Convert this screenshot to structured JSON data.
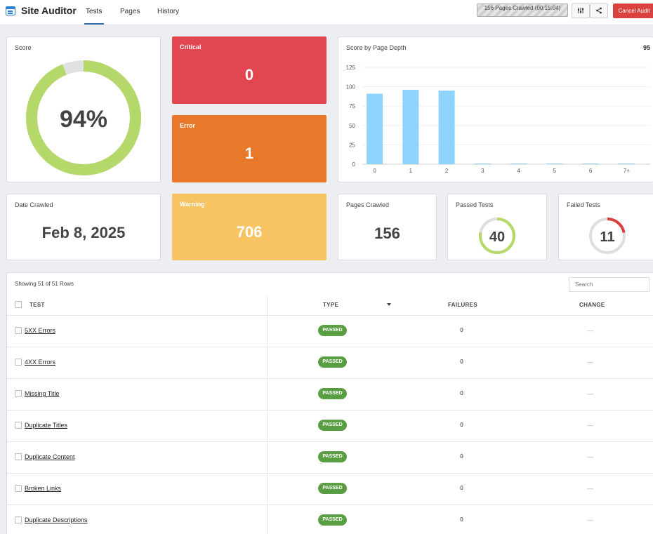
{
  "app": {
    "title": "Site Auditor"
  },
  "tabs": [
    "Tests",
    "Pages",
    "History"
  ],
  "header": {
    "crawl_status": "156 Pages Crawled  (00:15:04)",
    "filter_icon": "sliders-icon",
    "share_icon": "share-icon",
    "cancel_label": "Cancel Audit"
  },
  "score": {
    "label": "Score",
    "value": "94%",
    "fraction": 0.94
  },
  "critical": {
    "label": "Critical",
    "value": "0"
  },
  "error": {
    "label": "Error",
    "value": "1"
  },
  "warning": {
    "label": "Warning",
    "value": "706"
  },
  "date": {
    "label": "Date Crawled",
    "value": "Feb 8, 2025"
  },
  "pages_crawled": {
    "label": "Pages Crawled",
    "value": "156"
  },
  "passed_tests": {
    "label": "Passed Tests",
    "value": "40",
    "fraction": 0.78
  },
  "failed_tests": {
    "label": "Failed Tests",
    "value": "11",
    "fraction": 0.22
  },
  "chart_data": {
    "type": "bar",
    "title": "Score by Page Depth",
    "value_label": "95",
    "categories": [
      "0",
      "1",
      "2",
      "3",
      "4",
      "5",
      "6",
      "7+"
    ],
    "values": [
      91,
      96,
      95,
      0,
      0,
      0,
      0,
      0
    ],
    "yticks": [
      0,
      25,
      50,
      75,
      100,
      125
    ],
    "ylim": [
      0,
      125
    ],
    "color": "#8dd3fb",
    "grid": true
  },
  "table": {
    "showing": "Showing 51 of 51 Rows",
    "search_placeholder": "Search",
    "headers": {
      "test": "TEST",
      "type": "TYPE",
      "failures": "FAILURES",
      "change": "CHANGE"
    },
    "rows": [
      {
        "test": "5XX Errors",
        "type": "PASSED",
        "failures": "0",
        "change": "—"
      },
      {
        "test": "4XX Errors",
        "type": "PASSED",
        "failures": "0",
        "change": "—"
      },
      {
        "test": "Missing Title",
        "type": "PASSED",
        "failures": "0",
        "change": "—"
      },
      {
        "test": "Duplicate Titles",
        "type": "PASSED",
        "failures": "0",
        "change": "—"
      },
      {
        "test": "Duplicate Content",
        "type": "PASSED",
        "failures": "0",
        "change": "—"
      },
      {
        "test": "Broken Links",
        "type": "PASSED",
        "failures": "0",
        "change": "—"
      },
      {
        "test": "Duplicate Descriptions",
        "type": "PASSED",
        "failures": "0",
        "change": "—"
      }
    ]
  },
  "colors": {
    "critical": "#e24650",
    "error": "#e8792a",
    "warning": "#f7c363",
    "score_ring": "#b5d86a",
    "passed_badge": "#5a9e44",
    "failed_ring": "#d9423f",
    "accent": "#2d6fb8"
  }
}
